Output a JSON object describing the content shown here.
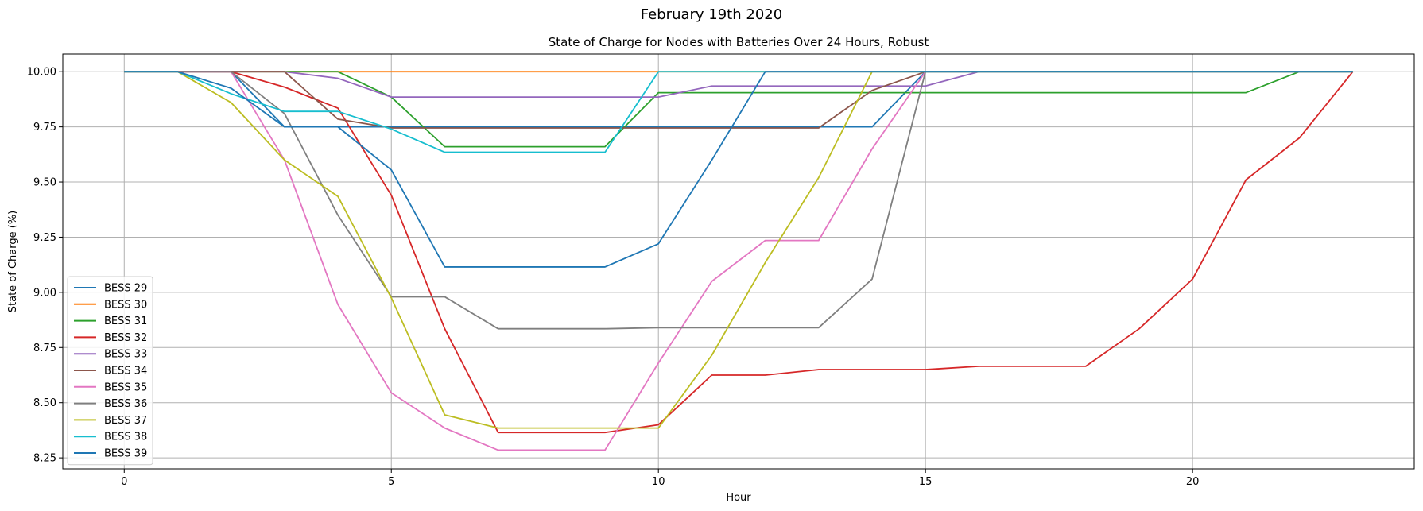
{
  "chart_data": {
    "type": "line",
    "suptitle": "February 19th 2020",
    "title": "State of Charge for Nodes with Batteries Over 24 Hours, Robust",
    "xlabel": "Hour",
    "ylabel": "State of Charge (%)",
    "xlim": [
      -1.15,
      24.15
    ],
    "ylim": [
      8.2,
      10.08
    ],
    "xticks": [
      0,
      5,
      10,
      15,
      20
    ],
    "yticks": [
      8.25,
      8.5,
      8.75,
      9.0,
      9.25,
      9.5,
      9.75,
      10.0
    ],
    "grid": true,
    "legend_position": "lower-left",
    "x": [
      0,
      1,
      2,
      3,
      4,
      5,
      6,
      7,
      8,
      9,
      10,
      11,
      12,
      13,
      14,
      15,
      16,
      17,
      18,
      19,
      20,
      21,
      22,
      23
    ],
    "series": [
      {
        "name": "BESS 29",
        "color": "#1f77b4",
        "values": [
          10,
          10,
          10,
          9.75,
          9.75,
          9.75,
          9.75,
          9.75,
          9.75,
          9.75,
          9.75,
          9.75,
          9.75,
          9.75,
          9.75,
          10,
          10,
          10,
          10,
          10,
          10,
          10,
          10,
          10
        ]
      },
      {
        "name": "BESS 30",
        "color": "#ff7f0e",
        "values": [
          10,
          10,
          10,
          10,
          10,
          10,
          10,
          10,
          10,
          10,
          10,
          10,
          10,
          10,
          10,
          10,
          10,
          10,
          10,
          10,
          10,
          10,
          10,
          10
        ]
      },
      {
        "name": "BESS 31",
        "color": "#2ca02c",
        "values": [
          10,
          10,
          10,
          10,
          10,
          9.885,
          9.66,
          9.66,
          9.66,
          9.66,
          9.905,
          9.905,
          9.905,
          9.905,
          9.905,
          9.905,
          9.905,
          9.905,
          9.905,
          9.905,
          9.905,
          9.905,
          10,
          10
        ]
      },
      {
        "name": "BESS 32",
        "color": "#d62728",
        "values": [
          10,
          10,
          10,
          9.93,
          9.835,
          9.44,
          8.835,
          8.365,
          8.365,
          8.365,
          8.4,
          8.625,
          8.625,
          8.65,
          8.65,
          8.65,
          8.665,
          8.665,
          8.665,
          8.835,
          9.06,
          9.51,
          9.7,
          10
        ]
      },
      {
        "name": "BESS 33",
        "color": "#9467bd",
        "values": [
          10,
          10,
          10,
          10,
          9.97,
          9.885,
          9.885,
          9.885,
          9.885,
          9.885,
          9.885,
          9.935,
          9.935,
          9.935,
          9.935,
          9.935,
          10,
          10,
          10,
          10,
          10,
          10,
          10,
          10
        ]
      },
      {
        "name": "BESS 34",
        "color": "#8c564b",
        "values": [
          10,
          10,
          10,
          10,
          9.785,
          9.745,
          9.745,
          9.745,
          9.745,
          9.745,
          9.745,
          9.745,
          9.745,
          9.745,
          9.915,
          10,
          10,
          10,
          10,
          10,
          10,
          10,
          10,
          10
        ]
      },
      {
        "name": "BESS 35",
        "color": "#e377c2",
        "values": [
          10,
          10,
          10,
          9.6,
          8.945,
          8.545,
          8.385,
          8.285,
          8.285,
          8.285,
          8.68,
          9.05,
          9.235,
          9.235,
          9.65,
          10,
          10,
          10,
          10,
          10,
          10,
          10,
          10,
          10
        ]
      },
      {
        "name": "BESS 36",
        "color": "#7f7f7f",
        "values": [
          10,
          10,
          10,
          9.81,
          9.35,
          8.98,
          8.98,
          8.835,
          8.835,
          8.835,
          8.84,
          8.84,
          8.84,
          8.84,
          9.06,
          10,
          10,
          10,
          10,
          10,
          10,
          10,
          10,
          10
        ]
      },
      {
        "name": "BESS 37",
        "color": "#bcbd22",
        "values": [
          10,
          10,
          9.86,
          9.6,
          9.435,
          8.975,
          8.445,
          8.385,
          8.385,
          8.385,
          8.385,
          8.715,
          9.135,
          9.52,
          10,
          10,
          10,
          10,
          10,
          10,
          10,
          10,
          10,
          10
        ]
      },
      {
        "name": "BESS 38",
        "color": "#17becf",
        "values": [
          10,
          10,
          9.9,
          9.82,
          9.82,
          9.74,
          9.635,
          9.635,
          9.635,
          9.635,
          10,
          10,
          10,
          10,
          10,
          10,
          10,
          10,
          10,
          10,
          10,
          10,
          10,
          10
        ]
      },
      {
        "name": "BESS 39",
        "color": "#1f77b4",
        "values": [
          10,
          10,
          9.925,
          9.75,
          9.75,
          9.555,
          9.115,
          9.115,
          9.115,
          9.115,
          9.22,
          9.6,
          10,
          10,
          10,
          10,
          10,
          10,
          10,
          10,
          10,
          10,
          10,
          10
        ]
      }
    ]
  }
}
